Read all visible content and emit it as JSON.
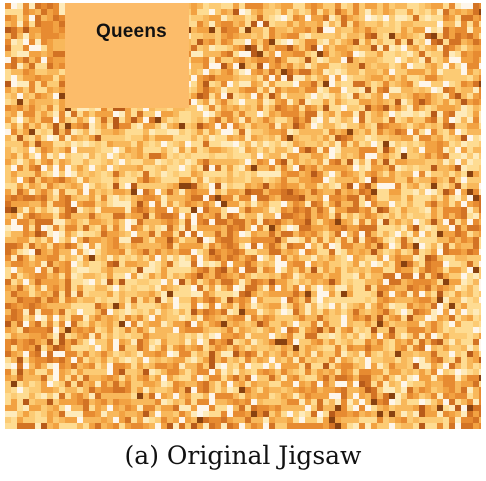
{
  "figure": {
    "region_label": "Queens",
    "caption": "(a) Original Jigsaw",
    "palette": [
      "#ffffff",
      "#fff3c9",
      "#ffe29a",
      "#fdcf78",
      "#f9b95c",
      "#f2a03f",
      "#e5862c",
      "#cf6a1d",
      "#b04f12",
      "#7a3306"
    ],
    "highlight_block_color": "#fcbc6a"
  }
}
